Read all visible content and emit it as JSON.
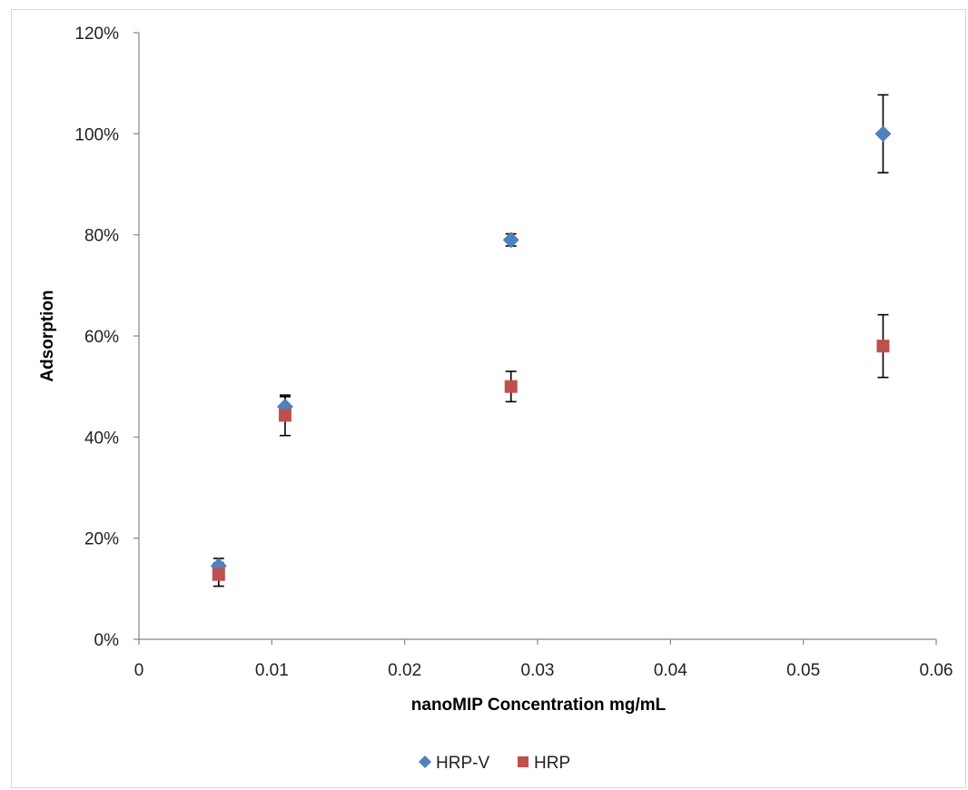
{
  "chart_data": {
    "type": "scatter",
    "title": "",
    "xlabel": "nanoMIP Concentration mg/mL",
    "ylabel": "Adsorption",
    "xlim": [
      0,
      0.06
    ],
    "ylim": [
      0,
      1.2
    ],
    "x_ticks": [
      "0",
      "0.01",
      "0.02",
      "0.03",
      "0.04",
      "0.05",
      "0.06"
    ],
    "y_ticks": [
      "0%",
      "20%",
      "40%",
      "60%",
      "80%",
      "100%",
      "120%"
    ],
    "grid": false,
    "legend_position": "bottom",
    "series": [
      {
        "name": "HRP-V",
        "marker": "diamond",
        "color": "#4f81bd",
        "points": [
          {
            "x": 0.006,
            "y": 0.145,
            "err_lo": 0.015,
            "err_hi": 0.015
          },
          {
            "x": 0.011,
            "y": 0.46,
            "err_lo": 0.015,
            "err_hi": 0.02
          },
          {
            "x": 0.028,
            "y": 0.79,
            "err_lo": 0.012,
            "err_hi": 0.012
          },
          {
            "x": 0.056,
            "y": 1.0,
            "err_lo": 0.077,
            "err_hi": 0.077
          }
        ]
      },
      {
        "name": "HRP",
        "marker": "square",
        "color": "#c0504d",
        "points": [
          {
            "x": 0.006,
            "y": 0.128,
            "err_lo": 0.023,
            "err_hi": 0.023
          },
          {
            "x": 0.011,
            "y": 0.443,
            "err_lo": 0.04,
            "err_hi": 0.04
          },
          {
            "x": 0.028,
            "y": 0.5,
            "err_lo": 0.03,
            "err_hi": 0.03
          },
          {
            "x": 0.056,
            "y": 0.58,
            "err_lo": 0.062,
            "err_hi": 0.062
          }
        ]
      }
    ]
  }
}
